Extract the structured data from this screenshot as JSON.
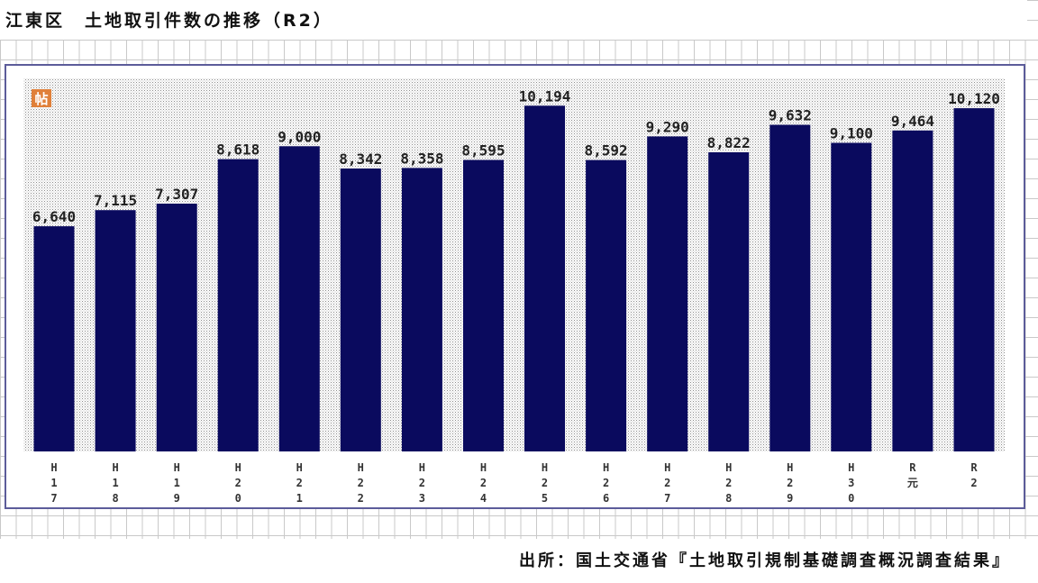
{
  "title": "江東区　土地取引件数の推移（R2）",
  "source": "出所：国土交通省『土地取引規制基礎調査概況調査結果』",
  "badge_text": "帖",
  "colors": {
    "bar": "#0a0a5e",
    "plot_dots": "#9a9a9a",
    "frame_border": "#5c5c9a",
    "badge": "#e0803a"
  },
  "chart_data": {
    "type": "bar",
    "title": "江東区　土地取引件数の推移（R2）",
    "xlabel": "",
    "ylabel": "",
    "categories": [
      "H17",
      "H18",
      "H19",
      "H20",
      "H21",
      "H22",
      "H23",
      "H24",
      "H25",
      "H26",
      "H27",
      "H28",
      "H29",
      "H30",
      "R元",
      "R2"
    ],
    "category_labels": [
      [
        "H",
        "1",
        "7"
      ],
      [
        "H",
        "1",
        "8"
      ],
      [
        "H",
        "1",
        "9"
      ],
      [
        "H",
        "2",
        "0"
      ],
      [
        "H",
        "2",
        "1"
      ],
      [
        "H",
        "2",
        "2"
      ],
      [
        "H",
        "2",
        "3"
      ],
      [
        "H",
        "2",
        "4"
      ],
      [
        "H",
        "2",
        "5"
      ],
      [
        "H",
        "2",
        "6"
      ],
      [
        "H",
        "2",
        "7"
      ],
      [
        "H",
        "2",
        "8"
      ],
      [
        "H",
        "2",
        "9"
      ],
      [
        "H",
        "3",
        "0"
      ],
      [
        "R",
        "元"
      ],
      [
        "R",
        "2"
      ]
    ],
    "values": [
      6640,
      7115,
      7307,
      8618,
      9000,
      8342,
      8358,
      8595,
      10194,
      8592,
      9290,
      8822,
      9632,
      9100,
      9464,
      10120
    ],
    "value_labels": [
      "6,640",
      "7,115",
      "7,307",
      "8,618",
      "9,000",
      "8,342",
      "8,358",
      "8,595",
      "10,194",
      "8,592",
      "9,290",
      "8,822",
      "9,632",
      "9,100",
      "9,464",
      "10,120"
    ],
    "ylim": [
      0,
      11000
    ],
    "grid": false,
    "legend": "none"
  }
}
